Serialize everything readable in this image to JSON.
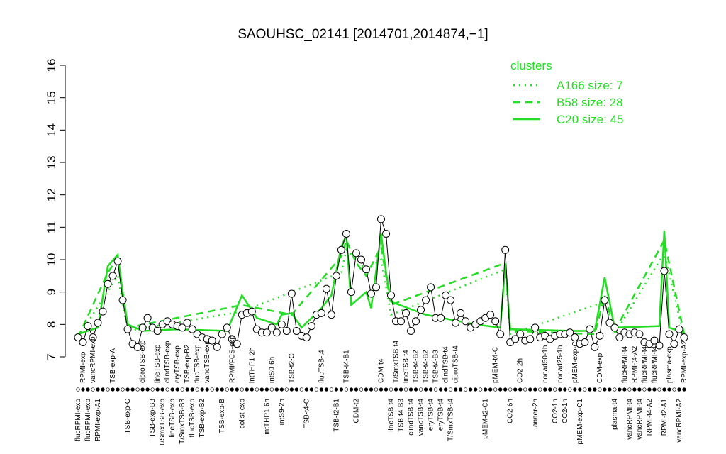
{
  "chart_data": {
    "type": "line",
    "title": "SAOUHSC_02141 [2014701,2014874,−1]",
    "ylim": [
      7,
      16
    ],
    "yticks": [
      7,
      8,
      9,
      10,
      11,
      12,
      13,
      14,
      15,
      16
    ],
    "color": "#000000",
    "legend_title": "clusters",
    "legend_position": "top-right",
    "categories": [
      "flucRPMI-exp",
      "RPMI-exp",
      "flucRPMI-exp",
      "vancRPMI-exp",
      "RPMI-exp-A1",
      null,
      null,
      "TSB-exp-A",
      null,
      null,
      "TSB-exp-C",
      null,
      null,
      "ciproTSB-exp",
      null,
      "TSB-exp-B3",
      "lineTSB-exp",
      "T/SmxTSB-exp",
      "clindTSB-exp",
      "lineTSB-exp",
      "eryTSB-exp",
      "T/SmxTSB-B3",
      "TSB-exp-B2",
      "flucTSB-exp",
      "flucTSB-exp",
      "TSB-exp-B2",
      "vancTSB-exp",
      null,
      null,
      "TSB-exp-B",
      null,
      "RPMI/FCS-exp",
      null,
      "colist-exp",
      null,
      "intTHP1-2h",
      null,
      null,
      "intTHP1-6h",
      "intS9-6h",
      null,
      "intS9-2h",
      null,
      "TSB-t2-C",
      null,
      null,
      "TSB-t4-C",
      null,
      null,
      "flucTSB-t4",
      null,
      null,
      "TSB-t2-B1",
      null,
      "TSB-t4-B1",
      null,
      "CDM-t2",
      null,
      null,
      null,
      null,
      "CDM-t4",
      null,
      "lineTSB-t4",
      "T/SmxTSB-t4",
      "TSB-t4-B3",
      "lineTSB-t4",
      "clindTSB-t4",
      "TSB-t4-B2",
      "vancTSB-t4",
      "TSB-t4-B2",
      "eryTSB-t4",
      "TSB-t4-B3",
      "eryTSB-t4",
      "clindTSB-t4",
      "T/SmxTSB-t4",
      "ciproTSB-t4",
      null,
      null,
      null,
      null,
      null,
      "pMEM-t2-C1",
      null,
      "pMEM-t4-C",
      null,
      null,
      "CO2-6h",
      null,
      "CO2-2h",
      null,
      null,
      "anaer-2h",
      null,
      "nonad50-1h",
      null,
      "CO2-1h",
      "nonad25-1h",
      "CO2-1h",
      null,
      "pMEM-exp-C",
      "pMEM-exp-C1",
      null,
      null,
      null,
      "CDM-exp",
      null,
      null,
      "plasma-t4",
      null,
      "flucRPMI-t4",
      "vancRPMI-t4",
      "RPMI-t4-A2",
      "vancRPMI-t4",
      "flucRPMI-t4",
      "RPMI-t4-A2",
      "flucRPMI-t4",
      null,
      "RPMI-t2-A1",
      "plasma-exp",
      null,
      "vancRPMI-A2",
      "RPMI-exp-A2"
    ],
    "values": [
      7.6,
      7.45,
      7.95,
      7.6,
      8.05,
      8.4,
      9.25,
      9.5,
      9.95,
      8.75,
      7.85,
      7.4,
      7.3,
      7.9,
      8.2,
      7.9,
      7.8,
      8.0,
      8.1,
      8.0,
      7.95,
      7.9,
      8.05,
      7.85,
      7.7,
      7.6,
      7.55,
      7.5,
      7.3,
      7.7,
      7.9,
      7.55,
      7.4,
      8.3,
      8.35,
      8.4,
      7.85,
      7.75,
      7.75,
      7.9,
      7.75,
      8.0,
      7.8,
      8.95,
      7.8,
      7.65,
      7.6,
      7.95,
      8.3,
      8.35,
      9.1,
      8.3,
      9.5,
      10.3,
      10.8,
      9.0,
      10.2,
      10.0,
      9.7,
      8.95,
      9.15,
      11.25,
      10.8,
      8.9,
      8.1,
      8.1,
      8.35,
      7.8,
      8.1,
      8.45,
      8.75,
      9.15,
      8.2,
      8.2,
      8.9,
      8.75,
      8.05,
      8.35,
      8.1,
      7.9,
      8.0,
      8.1,
      8.2,
      8.3,
      8.1,
      7.7,
      10.3,
      7.45,
      7.55,
      7.7,
      7.5,
      7.55,
      7.9,
      7.6,
      7.65,
      7.55,
      7.65,
      7.7,
      7.7,
      7.75,
      7.6,
      7.4,
      7.45,
      7.85,
      7.3,
      7.65,
      8.75,
      8.05,
      7.9,
      7.6,
      7.75,
      7.7,
      7.75,
      7.7,
      7.45,
      7.4,
      7.5,
      7.35,
      9.65,
      7.7,
      7.4,
      7.85,
      7.6
    ],
    "series": [
      {
        "name": "A166 size: 7",
        "color": "#22dd22",
        "style": "dotted",
        "x": [
          0,
          8,
          10,
          33,
          53,
          54,
          58,
          61,
          63,
          86,
          87,
          106,
          108,
          118,
          122
        ],
        "values": [
          7.6,
          9.5,
          7.8,
          8.4,
          9.6,
          10.3,
          9.7,
          10.0,
          8.3,
          9.7,
          7.7,
          8.7,
          7.7,
          10.2,
          7.6
        ]
      },
      {
        "name": "B58 size: 28",
        "color": "#22dd22",
        "style": "dashed",
        "x": [
          0,
          6,
          8,
          10,
          33,
          43,
          53,
          54,
          56,
          58,
          61,
          63,
          86,
          87,
          104,
          106,
          108,
          118,
          122
        ],
        "values": [
          7.6,
          9.6,
          10.05,
          7.9,
          8.6,
          8.3,
          10.1,
          10.6,
          9.9,
          9.5,
          10.4,
          8.6,
          9.9,
          7.8,
          7.7,
          8.9,
          7.8,
          10.6,
          7.7
        ]
      },
      {
        "name": "C20 size: 45",
        "color": "#22dd22",
        "style": "solid",
        "x": [
          0,
          4,
          6,
          8,
          9,
          10,
          13,
          20,
          30,
          33,
          36,
          40,
          41,
          43,
          45,
          49,
          51,
          53,
          54,
          55,
          58,
          59,
          61,
          62,
          63,
          70,
          80,
          85,
          86,
          87,
          100,
          104,
          106,
          108,
          117,
          118,
          119,
          122
        ],
        "values": [
          7.7,
          7.9,
          9.8,
          10.15,
          9.0,
          8.0,
          7.8,
          7.85,
          7.8,
          8.9,
          8.2,
          8.0,
          8.3,
          8.35,
          7.9,
          8.5,
          8.9,
          10.4,
          10.75,
          8.6,
          9.0,
          8.5,
          10.8,
          9.6,
          8.7,
          8.3,
          8.0,
          7.9,
          9.85,
          7.85,
          7.8,
          7.8,
          9.45,
          7.9,
          7.95,
          10.9,
          7.9,
          7.75
        ]
      }
    ]
  }
}
